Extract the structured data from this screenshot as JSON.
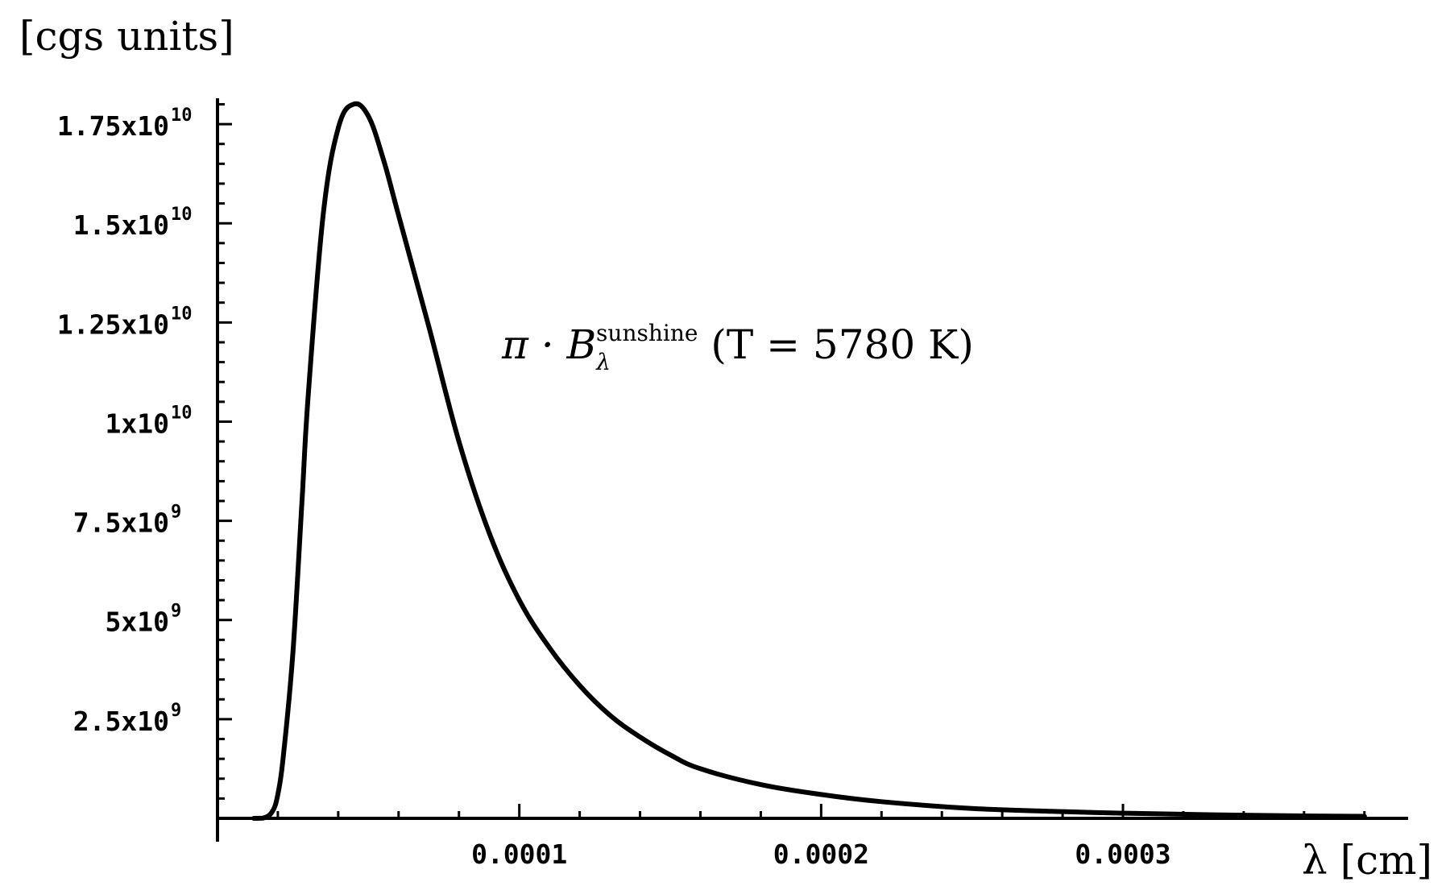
{
  "chart_data": {
    "type": "line",
    "ylabel": "[cgs units]",
    "xlabel": "λ [cm]",
    "xlim": [
      0,
      0.0003854
    ],
    "ylim": [
      0,
      18050000000.0
    ],
    "grid": false,
    "x_ticks": [
      {
        "value": 0.0001,
        "label": "0.0001"
      },
      {
        "value": 0.0002,
        "label": "0.0002"
      },
      {
        "value": 0.0003,
        "label": "0.0003"
      }
    ],
    "y_ticks": [
      {
        "value": 2500000000.0,
        "mantissa": "2.5x10",
        "exp": "9"
      },
      {
        "value": 5000000000.0,
        "mantissa": "5x10",
        "exp": "9"
      },
      {
        "value": 7500000000.0,
        "mantissa": "7.5x10",
        "exp": "9"
      },
      {
        "value": 10000000000.0,
        "mantissa": "1x10",
        "exp": "10"
      },
      {
        "value": 12500000000.0,
        "mantissa": "1.25x10",
        "exp": "10"
      },
      {
        "value": 15000000000.0,
        "mantissa": "1.5x10",
        "exp": "10"
      },
      {
        "value": 17500000000.0,
        "mantissa": "1.75x10",
        "exp": "10"
      }
    ],
    "annotation": {
      "prefix": "π · B",
      "subscript": "λ",
      "superscript": "sunshine",
      "rest": " (T = 5780 K)"
    },
    "series": [
      {
        "x": [
          1.2e-05,
          1.5e-05,
          1.8e-05,
          2e-05,
          2.2e-05,
          2.5e-05,
          2.8e-05,
          3e-05,
          3.5e-05,
          4e-05,
          4.5e-05,
          5e-05,
          5.5e-05,
          6e-05,
          7e-05,
          8e-05,
          9e-05,
          0.0001,
          0.00011,
          0.00012,
          0.00013,
          0.00014,
          0.00015,
          0.00016,
          0.00018,
          0.0002,
          0.00022,
          0.00025,
          0.00028,
          0.0003,
          0.00033,
          0.00036,
          0.00038
        ],
        "y": [
          0,
          5000000.0,
          150000000.0,
          600000000.0,
          1700000000.0,
          4200000000.0,
          8000000000.0,
          10600000000.0,
          15200000000.0,
          17400000000.0,
          18000000000.0,
          17700000000.0,
          16600000000.0,
          15200000000.0,
          12400000000.0,
          9500000000.0,
          7200000000.0,
          5500000000.0,
          4300000000.0,
          3350000000.0,
          2600000000.0,
          2050000000.0,
          1600000000.0,
          1250000000.0,
          850000000.0,
          600000000.0,
          420000000.0,
          250000000.0,
          170000000.0,
          130000000.0,
          90000000.0,
          60000000.0,
          50000000.0
        ]
      }
    ]
  }
}
